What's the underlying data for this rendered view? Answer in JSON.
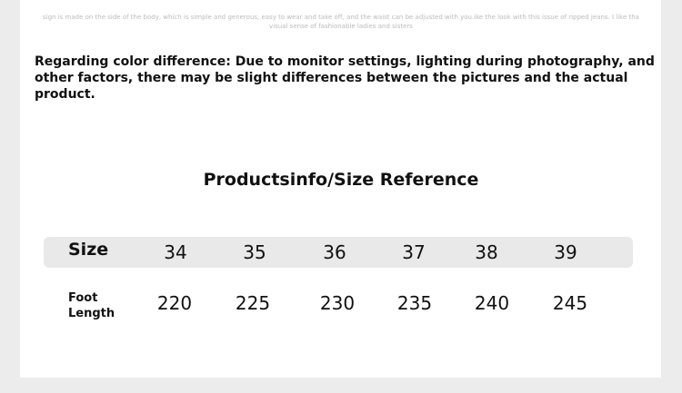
{
  "description_text": "sign is made on the side of the body, which is simple and generous, easy to wear and take off, and the waist can be adjusted with you.ike the look with this issue of ripped jeans. I like tha visual sense of fashionable ladies and sisters",
  "color_note": "Regarding color difference: Due to monitor settings, lighting during photography, and other factors, there may be slight differences between the pictures and the actual product.",
  "title": "Productsinfo/Size Reference",
  "table": {
    "size_label": "Size",
    "foot_label": "Foot Length",
    "sizes": [
      "34",
      "35",
      "36",
      "37",
      "38",
      "39"
    ],
    "lengths": [
      "220",
      "225",
      "230",
      "235",
      "240",
      "245"
    ]
  }
}
